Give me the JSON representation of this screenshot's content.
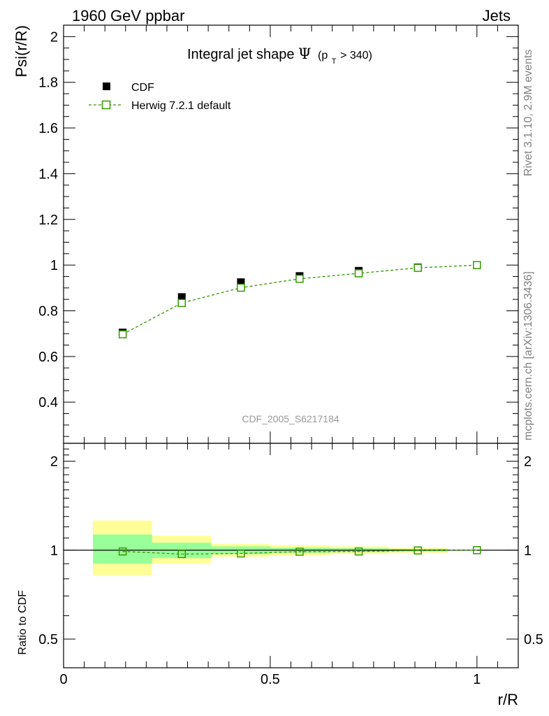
{
  "header": {
    "left": "1960 GeV ppbar",
    "right": "Jets"
  },
  "side_text": {
    "rivet": "Rivet 3.1.10,  2.9M events",
    "mcplots": "mcplots.cern.ch [arXiv:1306.3436]"
  },
  "chart_data": {
    "type": "scatter",
    "title_main": "Integral jet shape",
    "title_symbol": "Ψ",
    "title_paren_open": "(p",
    "title_sub": "T",
    "title_tail": " > 340)",
    "analysis_label": "CDF_2005_S6217184",
    "xlabel": "r/R",
    "ylabel": "Psi(r/R)",
    "ratio_ylabel": "Ratio to CDF",
    "xlim": [
      0,
      1.1
    ],
    "ylim": [
      0.22,
      2.05
    ],
    "ratio_ylim": [
      0.4,
      2.3
    ],
    "x_ticks": [
      "0",
      "0.5",
      "1"
    ],
    "y_ticks": [
      "0.4",
      "0.6",
      "0.8",
      "1",
      "1.2",
      "1.4",
      "1.6",
      "1.8",
      "2"
    ],
    "ratio_ticks": [
      "0.5",
      "1",
      "2"
    ],
    "legend": {
      "data_label": "CDF",
      "mc_label": "Herwig 7.2.1 default"
    },
    "x": [
      0.143,
      0.286,
      0.429,
      0.571,
      0.714,
      0.857,
      1.0
    ],
    "bin_edges": [
      0.071,
      0.214,
      0.357,
      0.5,
      0.643,
      0.786,
      0.929,
      1.071
    ],
    "series": [
      {
        "name": "CDF",
        "values": [
          0.705,
          0.86,
          0.925,
          0.952,
          0.975,
          0.99,
          1.0
        ],
        "color": "#000000"
      },
      {
        "name": "Herwig 7.2.1 default",
        "values": [
          0.697,
          0.834,
          0.901,
          0.94,
          0.964,
          0.988,
          1.0
        ],
        "color": "#339900"
      }
    ],
    "ratio": {
      "values": [
        0.99,
        0.97,
        0.975,
        0.988,
        0.99,
        0.998,
        1.0
      ],
      "band_inner": [
        [
          0.9,
          1.13
        ],
        [
          0.94,
          1.06
        ],
        [
          0.97,
          1.03
        ],
        [
          0.98,
          1.02
        ],
        [
          0.985,
          1.015
        ],
        [
          0.99,
          1.01
        ]
      ],
      "band_outer": [
        [
          0.82,
          1.26
        ],
        [
          0.9,
          1.12
        ],
        [
          0.95,
          1.05
        ],
        [
          0.96,
          1.04
        ],
        [
          0.97,
          1.03
        ],
        [
          0.98,
          1.02
        ]
      ],
      "inner_color": "#99ff99",
      "outer_color": "#ffff99"
    }
  }
}
